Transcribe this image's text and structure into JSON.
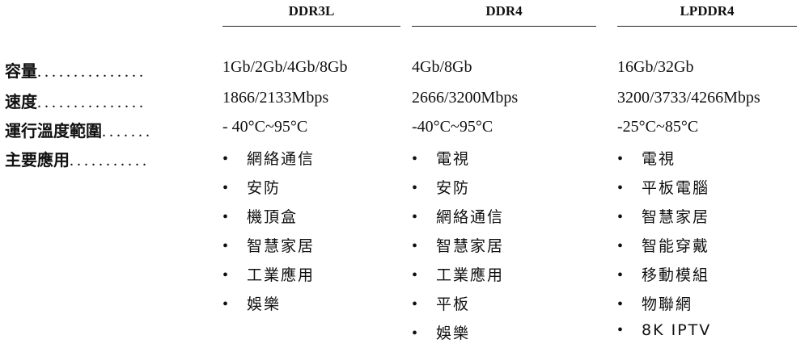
{
  "columns": [
    {
      "header": "DDR3L",
      "capacity": "1Gb/2Gb/4Gb/8Gb",
      "speed": "1866/2133Mbps",
      "temp": "- 40°C~95°C",
      "apps": [
        "網絡通信",
        "安防",
        "機頂盒",
        "智慧家居",
        "工業應用",
        "娛樂"
      ]
    },
    {
      "header": "DDR4",
      "capacity": "4Gb/8Gb",
      "speed": "2666/3200Mbps",
      "temp": "-40°C~95°C",
      "apps": [
        "電視",
        "安防",
        "網絡通信",
        "智慧家居",
        "工業應用",
        "平板",
        "娛樂"
      ]
    },
    {
      "header": "LPDDR4",
      "capacity": "16Gb/32Gb",
      "speed": "3200/3733/4266Mbps",
      "temp": "-25°C~85°C",
      "apps": [
        "電視",
        "平板電腦",
        "智慧家居",
        "智能穿戴",
        "移動模組",
        "物聯網",
        "8K IPTV"
      ]
    }
  ],
  "rows": [
    {
      "label": "容量",
      "dots": "..............."
    },
    {
      "label": "速度",
      "dots": "..............."
    },
    {
      "label": "運行溫度範圍",
      "dots": "......."
    },
    {
      "label": "主要應用",
      "dots": "..........."
    }
  ],
  "bullet": "•"
}
